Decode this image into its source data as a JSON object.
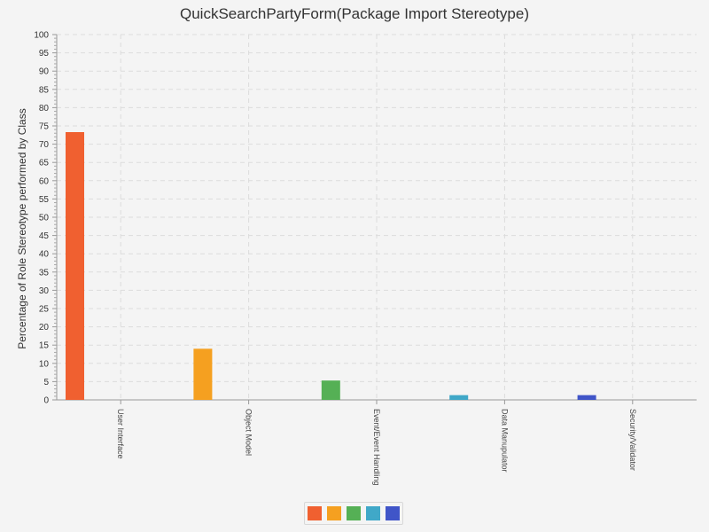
{
  "chart_data": {
    "type": "bar",
    "title": "QuickSearchPartyForm(Package Import Stereotype)",
    "xlabel": "",
    "ylabel": "Percentage of Role Stereotype performed by Class",
    "ylim": [
      0,
      100
    ],
    "yticks": [
      0,
      5,
      10,
      15,
      20,
      25,
      30,
      35,
      40,
      45,
      50,
      55,
      60,
      65,
      70,
      75,
      80,
      85,
      90,
      95,
      100
    ],
    "grid": true,
    "legend_position": "bottom",
    "categories": [
      "User Interface",
      "Object Model",
      "Event/Event Handling",
      "Data Manupulator",
      "Security/Validator"
    ],
    "values": [
      73.3,
      14.0,
      5.3,
      1.3,
      1.3
    ],
    "colors": [
      "#f06030",
      "#f5a020",
      "#55b055",
      "#40a8c8",
      "#4055c8"
    ]
  }
}
